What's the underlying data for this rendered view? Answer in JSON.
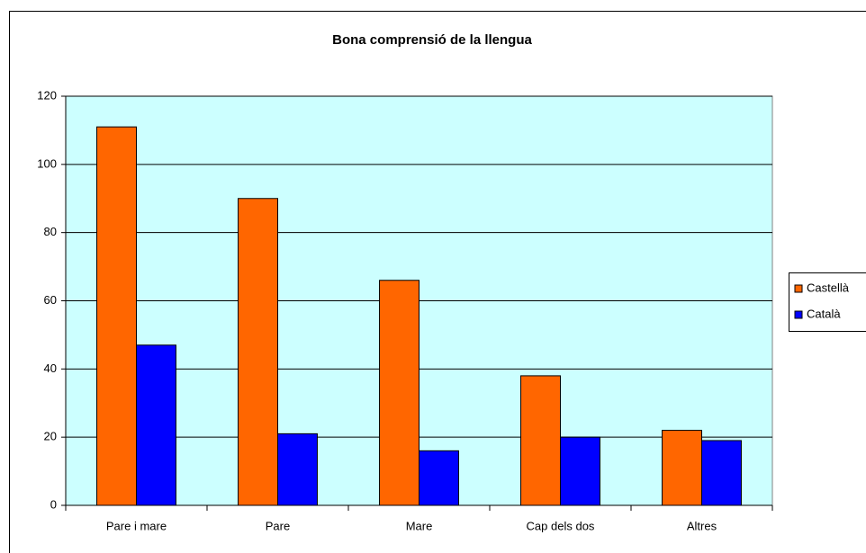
{
  "chart_data": {
    "type": "bar",
    "title": "Bona comprensió de la llengua",
    "categories": [
      "Pare i mare",
      "Pare",
      "Mare",
      "Cap dels dos",
      "Altres"
    ],
    "series": [
      {
        "name": "Castellà",
        "color": "#ff6600",
        "values": [
          111,
          90,
          66,
          38,
          22
        ]
      },
      {
        "name": "Català",
        "color": "#0000ff",
        "values": [
          47,
          21,
          16,
          20,
          19
        ]
      }
    ],
    "ylim": [
      0,
      120
    ],
    "yticks": [
      0,
      20,
      40,
      60,
      80,
      100,
      120
    ],
    "grid": true,
    "legend": "right"
  }
}
